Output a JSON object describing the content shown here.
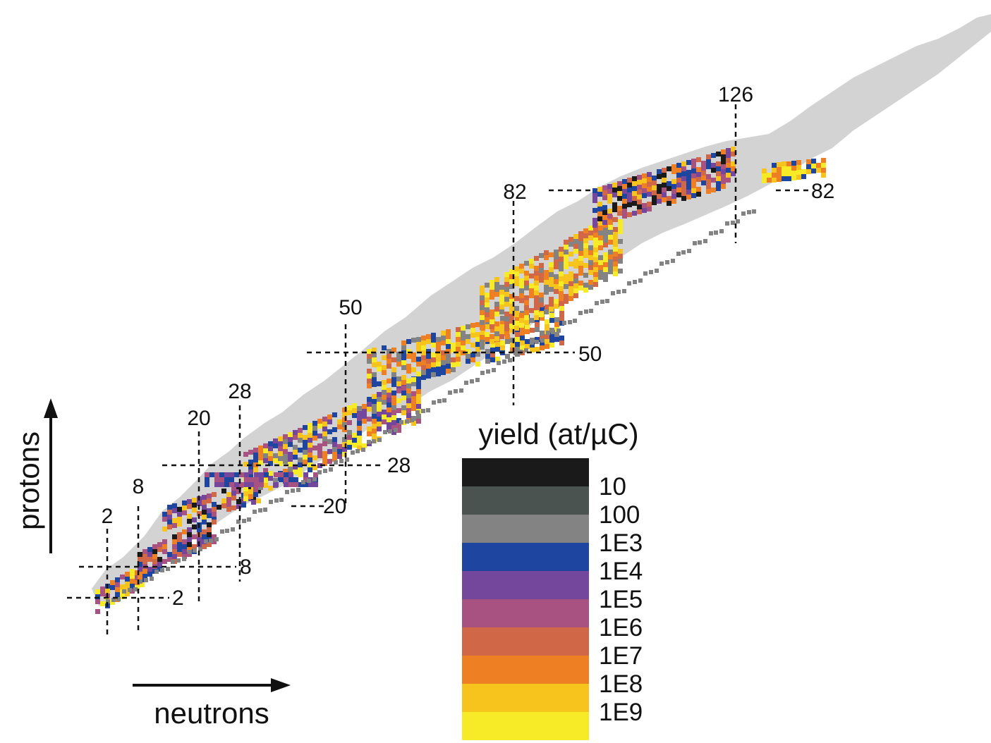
{
  "chart_data": {
    "type": "heatmap",
    "title": "",
    "xlabel": "neutrons",
    "ylabel": "protons",
    "legend": {
      "title": "yield (at/µC)",
      "position": "bottom-right",
      "levels": [
        "10",
        "100",
        "1E3",
        "1E4",
        "1E5",
        "1E6",
        "1E7",
        "1E8",
        "1E9"
      ],
      "colors": [
        "#1a1a1a",
        "#4b5351",
        "#838383",
        "#1e45a0",
        "#74479d",
        "#a75280",
        "#d06848",
        "#ee7f23",
        "#f7c41d",
        "#f7ea26"
      ]
    },
    "background_color": "#d3d3d3",
    "magic_numbers": {
      "neutrons": [
        "2",
        "8",
        "20",
        "28",
        "50",
        "82",
        "126"
      ],
      "protons": [
        "2",
        "8",
        "20",
        "28",
        "50",
        "82"
      ]
    }
  }
}
